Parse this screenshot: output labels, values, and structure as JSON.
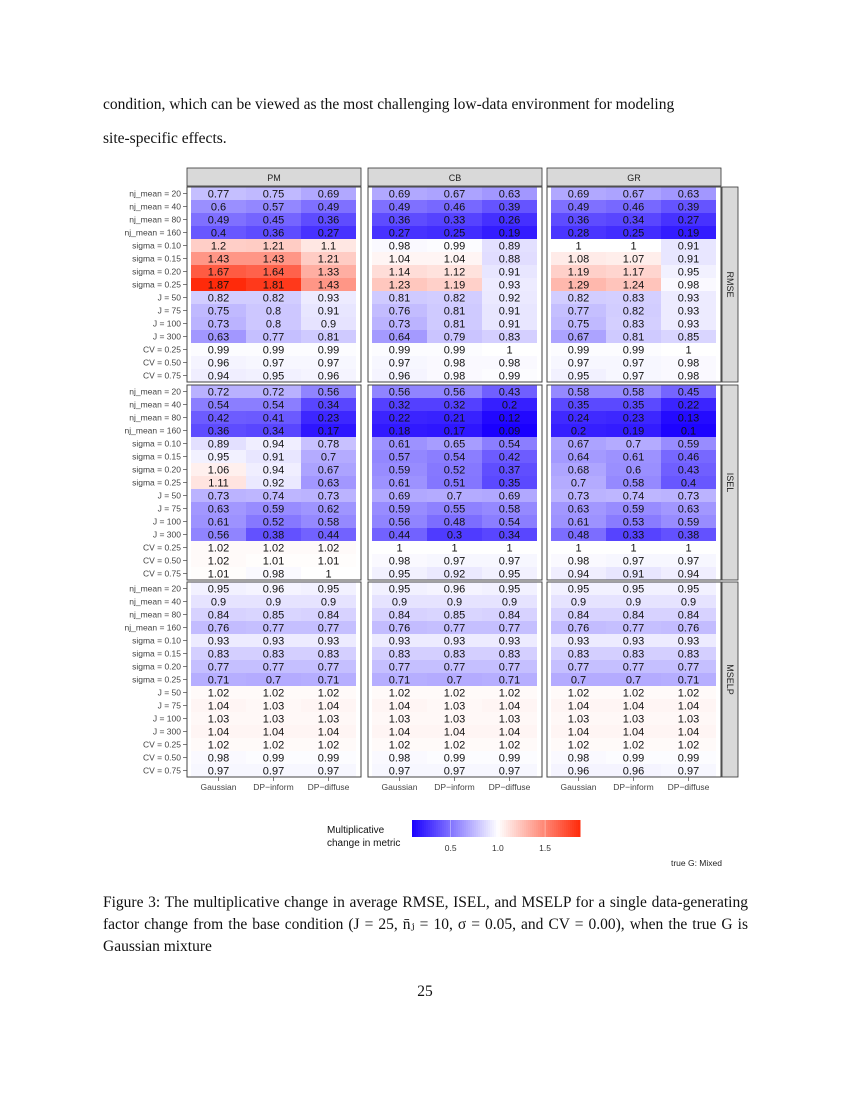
{
  "text_top": [
    "condition, which can be viewed as the most challenging low-data environment for modeling",
    "site-specific effects."
  ],
  "caption": "Figure 3: The multiplicative change in average RMSE, ISEL, and MSELP for a single data-generating factor change from the base condition (J = 25, n̄ⱼ = 10, σ = 0.05, and CV = 0.00), when the true G is Gaussian mixture",
  "page_number": "25",
  "chart_data": {
    "type": "heatmap",
    "column_facets": [
      "PM",
      "CB",
      "GR"
    ],
    "row_facets": [
      "RMSE",
      "ISEL",
      "MSELP"
    ],
    "x_categories": [
      "Gaussian",
      "DP−inform",
      "DP−diffuse"
    ],
    "y_categories": [
      "nj_mean = 20",
      "nj_mean = 40",
      "nj_mean = 80",
      "nj_mean = 160",
      "sigma = 0.10",
      "sigma = 0.15",
      "sigma = 0.20",
      "sigma = 0.25",
      "J = 50",
      "J = 75",
      "J = 100",
      "J = 300",
      "CV = 0.25",
      "CV = 0.50",
      "CV = 0.75"
    ],
    "legend": {
      "title": [
        "Multiplicative",
        "change in metric"
      ],
      "ticks": [
        "0.5",
        "1.0",
        "1.5"
      ],
      "range": [
        0.09,
        1.87
      ],
      "midpoint": 1.0,
      "low_color": "#1a00ff",
      "mid_color": "#ffffff",
      "high_color": "#ff2a0a",
      "placement": "bottom"
    },
    "annotation": "true G: Mixed",
    "values": {
      "RMSE": {
        "PM": [
          [
            0.77,
            0.75,
            0.69
          ],
          [
            0.6,
            0.57,
            0.49
          ],
          [
            0.49,
            0.45,
            0.36
          ],
          [
            0.4,
            0.36,
            0.27
          ],
          [
            1.2,
            1.21,
            1.1
          ],
          [
            1.43,
            1.43,
            1.21
          ],
          [
            1.67,
            1.64,
            1.33
          ],
          [
            1.87,
            1.81,
            1.43
          ],
          [
            0.82,
            0.82,
            0.93
          ],
          [
            0.75,
            0.8,
            0.91
          ],
          [
            0.73,
            0.8,
            0.9
          ],
          [
            0.63,
            0.77,
            0.81
          ],
          [
            0.99,
            0.99,
            0.99
          ],
          [
            0.96,
            0.97,
            0.97
          ],
          [
            0.94,
            0.95,
            0.96
          ]
        ],
        "CB": [
          [
            0.69,
            0.67,
            0.63
          ],
          [
            0.49,
            0.46,
            0.39
          ],
          [
            0.36,
            0.33,
            0.26
          ],
          [
            0.27,
            0.25,
            0.19
          ],
          [
            0.98,
            0.99,
            0.89
          ],
          [
            1.04,
            1.04,
            0.88
          ],
          [
            1.14,
            1.12,
            0.91
          ],
          [
            1.23,
            1.19,
            0.93
          ],
          [
            0.81,
            0.82,
            0.92
          ],
          [
            0.76,
            0.81,
            0.91
          ],
          [
            0.73,
            0.81,
            0.91
          ],
          [
            0.64,
            0.79,
            0.83
          ],
          [
            0.99,
            0.99,
            1
          ],
          [
            0.97,
            0.98,
            0.98
          ],
          [
            0.96,
            0.98,
            0.99
          ]
        ],
        "GR": [
          [
            0.69,
            0.67,
            0.63
          ],
          [
            0.49,
            0.46,
            0.39
          ],
          [
            0.36,
            0.34,
            0.27
          ],
          [
            0.28,
            0.25,
            0.19
          ],
          [
            1,
            1,
            0.91
          ],
          [
            1.08,
            1.07,
            0.91
          ],
          [
            1.19,
            1.17,
            0.95
          ],
          [
            1.29,
            1.24,
            0.98
          ],
          [
            0.82,
            0.83,
            0.93
          ],
          [
            0.77,
            0.82,
            0.93
          ],
          [
            0.75,
            0.83,
            0.93
          ],
          [
            0.67,
            0.81,
            0.85
          ],
          [
            0.99,
            0.99,
            1
          ],
          [
            0.97,
            0.97,
            0.98
          ],
          [
            0.95,
            0.97,
            0.98
          ]
        ]
      },
      "ISEL": {
        "PM": [
          [
            0.72,
            0.72,
            0.56
          ],
          [
            0.54,
            0.54,
            0.34
          ],
          [
            0.42,
            0.41,
            0.23
          ],
          [
            0.36,
            0.34,
            0.17
          ],
          [
            0.89,
            0.94,
            0.78
          ],
          [
            0.95,
            0.91,
            0.7
          ],
          [
            1.06,
            0.94,
            0.67
          ],
          [
            1.11,
            0.92,
            0.63
          ],
          [
            0.73,
            0.74,
            0.73
          ],
          [
            0.63,
            0.59,
            0.62
          ],
          [
            0.61,
            0.52,
            0.58
          ],
          [
            0.56,
            0.38,
            0.44
          ],
          [
            1.02,
            1.02,
            1.02
          ],
          [
            1.02,
            1.01,
            1.01
          ],
          [
            1.01,
            0.98,
            1
          ]
        ],
        "CB": [
          [
            0.56,
            0.56,
            0.43
          ],
          [
            0.32,
            0.32,
            0.2
          ],
          [
            0.22,
            0.21,
            0.12
          ],
          [
            0.18,
            0.17,
            0.09
          ],
          [
            0.61,
            0.65,
            0.54
          ],
          [
            0.57,
            0.54,
            0.42
          ],
          [
            0.59,
            0.52,
            0.37
          ],
          [
            0.61,
            0.51,
            0.35
          ],
          [
            0.69,
            0.7,
            0.69
          ],
          [
            0.59,
            0.55,
            0.58
          ],
          [
            0.56,
            0.48,
            0.54
          ],
          [
            0.44,
            0.3,
            0.34
          ],
          [
            1,
            1,
            1
          ],
          [
            0.98,
            0.97,
            0.97
          ],
          [
            0.95,
            0.92,
            0.95
          ]
        ],
        "GR": [
          [
            0.58,
            0.58,
            0.45
          ],
          [
            0.35,
            0.35,
            0.22
          ],
          [
            0.24,
            0.23,
            0.13
          ],
          [
            0.2,
            0.19,
            0.1
          ],
          [
            0.67,
            0.7,
            0.59
          ],
          [
            0.64,
            0.61,
            0.46
          ],
          [
            0.68,
            0.6,
            0.43
          ],
          [
            0.7,
            0.58,
            0.4
          ],
          [
            0.73,
            0.74,
            0.73
          ],
          [
            0.63,
            0.59,
            0.63
          ],
          [
            0.61,
            0.53,
            0.59
          ],
          [
            0.48,
            0.33,
            0.38
          ],
          [
            1,
            1,
            1
          ],
          [
            0.98,
            0.97,
            0.97
          ],
          [
            0.94,
            0.91,
            0.94
          ]
        ]
      },
      "MSELP": {
        "PM": [
          [
            0.95,
            0.96,
            0.95
          ],
          [
            0.9,
            0.9,
            0.9
          ],
          [
            0.84,
            0.85,
            0.84
          ],
          [
            0.76,
            0.77,
            0.77
          ],
          [
            0.93,
            0.93,
            0.93
          ],
          [
            0.83,
            0.83,
            0.83
          ],
          [
            0.77,
            0.77,
            0.77
          ],
          [
            0.71,
            0.7,
            0.71
          ],
          [
            1.02,
            1.02,
            1.02
          ],
          [
            1.04,
            1.03,
            1.04
          ],
          [
            1.03,
            1.03,
            1.03
          ],
          [
            1.04,
            1.04,
            1.04
          ],
          [
            1.02,
            1.02,
            1.02
          ],
          [
            0.98,
            0.99,
            0.99
          ],
          [
            0.97,
            0.97,
            0.97
          ]
        ],
        "CB": [
          [
            0.95,
            0.96,
            0.95
          ],
          [
            0.9,
            0.9,
            0.9
          ],
          [
            0.84,
            0.85,
            0.84
          ],
          [
            0.76,
            0.77,
            0.77
          ],
          [
            0.93,
            0.93,
            0.93
          ],
          [
            0.83,
            0.83,
            0.83
          ],
          [
            0.77,
            0.77,
            0.77
          ],
          [
            0.71,
            0.7,
            0.71
          ],
          [
            1.02,
            1.02,
            1.02
          ],
          [
            1.04,
            1.03,
            1.04
          ],
          [
            1.03,
            1.03,
            1.03
          ],
          [
            1.04,
            1.04,
            1.04
          ],
          [
            1.02,
            1.02,
            1.02
          ],
          [
            0.98,
            0.99,
            0.99
          ],
          [
            0.97,
            0.97,
            0.97
          ]
        ],
        "GR": [
          [
            0.95,
            0.95,
            0.95
          ],
          [
            0.9,
            0.9,
            0.9
          ],
          [
            0.84,
            0.84,
            0.84
          ],
          [
            0.76,
            0.77,
            0.76
          ],
          [
            0.93,
            0.93,
            0.93
          ],
          [
            0.83,
            0.83,
            0.83
          ],
          [
            0.77,
            0.77,
            0.77
          ],
          [
            0.7,
            0.7,
            0.71
          ],
          [
            1.02,
            1.02,
            1.02
          ],
          [
            1.04,
            1.04,
            1.04
          ],
          [
            1.03,
            1.03,
            1.03
          ],
          [
            1.04,
            1.04,
            1.04
          ],
          [
            1.02,
            1.02,
            1.02
          ],
          [
            0.98,
            0.99,
            0.99
          ],
          [
            0.96,
            0.96,
            0.97
          ]
        ]
      }
    }
  }
}
